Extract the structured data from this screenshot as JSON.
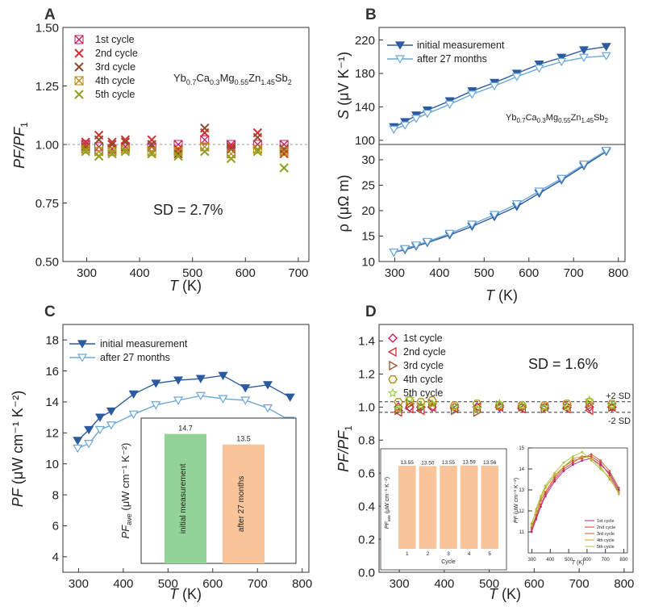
{
  "chart_data": [
    {
      "panel": "A",
      "type": "scatter",
      "xlabel_italic": "T",
      "xlabel_unit": "(K)",
      "ylabel": "PF/PF1",
      "xlim": [
        255,
        720
      ],
      "ylim": [
        0.5,
        1.5
      ],
      "xticks": [
        "300",
        "400",
        "500",
        "600",
        "700"
      ],
      "yticks": [
        "0.50",
        "0.75",
        "1.00",
        "1.25",
        "1.50"
      ],
      "xtick_values": [
        300,
        400,
        500,
        600,
        700
      ],
      "ytick_values": [
        0.5,
        0.75,
        1.0,
        1.25,
        1.5
      ],
      "material_label": {
        "base": "Yb",
        "sub1": "0.7",
        "m2": "Ca",
        "sub2": "0.3",
        "m3": "Mg",
        "sub3": "0.55",
        "m4": "Zn",
        "sub4": "1.45",
        "m5": "Sb",
        "sub5": "2"
      },
      "annotation": "SD = 2.7%",
      "reference_line": 1.0,
      "x": [
        298,
        323,
        348,
        373,
        423,
        473,
        523,
        573,
        623,
        673
      ],
      "series": [
        {
          "name": "1st cycle",
          "color": "#c2185b",
          "values": [
            1.0,
            0.99,
            0.98,
            0.99,
            0.99,
            1.0,
            1.02,
            1.0,
            1.0,
            1.0
          ]
        },
        {
          "name": "2nd cycle",
          "color": "#d32f2f",
          "values": [
            1.01,
            1.04,
            1.01,
            1.02,
            1.02,
            0.98,
            1.05,
            0.99,
            1.05,
            0.96
          ]
        },
        {
          "name": "3rd cycle",
          "color": "#8d4a2f",
          "values": [
            0.99,
            1.02,
            1.0,
            1.01,
            1.0,
            0.96,
            1.07,
            0.98,
            1.03,
            0.98
          ]
        },
        {
          "name": "4th cycle",
          "color": "#b8860b",
          "values": [
            0.98,
            0.97,
            0.97,
            0.98,
            0.97,
            0.97,
            0.99,
            0.96,
            0.98,
            0.97
          ]
        },
        {
          "name": "5th cycle",
          "color": "#8f9e1c",
          "values": [
            0.97,
            0.95,
            0.96,
            0.97,
            0.96,
            0.95,
            0.97,
            0.94,
            0.97,
            0.9
          ]
        }
      ]
    },
    {
      "panel": "B",
      "type": "line",
      "top": {
        "ylabel_italic": "S",
        "ylabel_unit": "(μV K⁻¹)",
        "ylim": [
          95,
          235
        ],
        "yticks": [
          "100",
          "140",
          "180",
          "220"
        ],
        "ytick_values": [
          100,
          140,
          180,
          220
        ],
        "x": [
          298,
          323,
          348,
          373,
          423,
          473,
          523,
          573,
          623,
          673,
          723,
          773
        ],
        "series": [
          {
            "name": "initial measurement",
            "color": "#2c5aa0",
            "filled": true,
            "values": [
              116,
              122,
              130,
              136,
              147,
              159,
              169,
              180,
              191,
              199,
              208,
              212
            ]
          },
          {
            "name": "after 27 months",
            "color": "#6aa8d8",
            "filled": false,
            "values": [
              113,
              118,
              126,
              132,
              143,
              155,
              165,
              176,
              186,
              194,
              199,
              201
            ]
          }
        ],
        "material_label": {
          "base": "Yb",
          "sub1": "0.7",
          "m2": "Ca",
          "sub2": "0.3",
          "m3": "Mg",
          "sub3": "0.55",
          "m4": "Zn",
          "sub4": "1.45",
          "m5": "Sb",
          "sub5": "2"
        }
      },
      "bottom": {
        "ylabel": "ρ (μΩ m)",
        "ylim": [
          10,
          33
        ],
        "yticks": [
          "10",
          "15",
          "20",
          "25",
          "30"
        ],
        "ytick_values": [
          10,
          15,
          20,
          25,
          30
        ],
        "x": [
          298,
          323,
          348,
          373,
          423,
          473,
          523,
          573,
          623,
          673,
          723,
          773
        ],
        "series": [
          {
            "name": "initial measurement",
            "color": "#2c5aa0",
            "filled": true,
            "values": [
              11.8,
              12.3,
              13.0,
              13.7,
              15.2,
              16.9,
              18.8,
              20.8,
              23.4,
              26.0,
              28.8,
              31.6
            ]
          },
          {
            "name": "after 27 months",
            "color": "#6aa8d8",
            "filled": false,
            "values": [
              11.8,
              12.5,
              13.2,
              13.9,
              15.5,
              17.3,
              19.2,
              21.3,
              23.8,
              26.3,
              29.1,
              31.8
            ]
          }
        ]
      },
      "xlim": [
        265,
        815
      ],
      "xticks": [
        "300",
        "400",
        "500",
        "600",
        "700",
        "800"
      ],
      "xtick_values": [
        300,
        400,
        500,
        600,
        700,
        800
      ],
      "xlabel_italic": "T",
      "xlabel_unit": "(K)"
    },
    {
      "panel": "C",
      "type": "line",
      "xlabel_italic": "T",
      "xlabel_unit": "(K)",
      "ylabel_italic": "PF",
      "ylabel_unit": "(μW cm⁻¹ K⁻²)",
      "xlim": [
        265,
        815
      ],
      "ylim": [
        3,
        19
      ],
      "xticks": [
        "300",
        "400",
        "500",
        "600",
        "700",
        "800"
      ],
      "xtick_values": [
        300,
        400,
        500,
        600,
        700,
        800
      ],
      "yticks": [
        "4",
        "6",
        "8",
        "10",
        "12",
        "14",
        "16",
        "18"
      ],
      "ytick_values": [
        4,
        6,
        8,
        10,
        12,
        14,
        16,
        18
      ],
      "x": [
        298,
        323,
        348,
        373,
        423,
        473,
        523,
        573,
        623,
        673,
        723,
        773
      ],
      "series": [
        {
          "name": "initial measurement",
          "color": "#2c5aa0",
          "filled": true,
          "values": [
            11.5,
            12.2,
            13.0,
            13.4,
            14.5,
            15.2,
            15.4,
            15.5,
            15.7,
            14.9,
            15.1,
            14.3
          ]
        },
        {
          "name": "after 27 months",
          "color": "#6aa8d8",
          "filled": false,
          "values": [
            11.0,
            11.3,
            12.2,
            12.5,
            13.2,
            13.8,
            14.1,
            14.4,
            14.2,
            14.1,
            13.6,
            12.8
          ]
        }
      ],
      "inset": {
        "type": "bar",
        "ylabel_italic": "PF",
        "ylabel_sub": "ave",
        "ylabel_unit": "(μW cm⁻¹ K⁻²)",
        "categories": [
          "initial measurement",
          "after 27 months"
        ],
        "values": [
          14.7,
          13.5
        ],
        "labels": [
          "14.7",
          "13.5"
        ],
        "colors": [
          "#93d39a",
          "#f9c49a"
        ],
        "ymin": 0,
        "ymax": 16.5
      }
    },
    {
      "panel": "D",
      "type": "scatter",
      "xlabel_italic": "T",
      "xlabel_unit": "(K)",
      "ylabel": "PF/PF1",
      "xlim": [
        255,
        820
      ],
      "ylim": [
        0,
        1.5
      ],
      "xticks": [
        "300",
        "400",
        "500",
        "600",
        "700",
        "800"
      ],
      "xtick_values": [
        300,
        400,
        500,
        600,
        700,
        800
      ],
      "yticks": [
        "0.0",
        "0.2",
        "0.4",
        "0.6",
        "0.8",
        "1.0",
        "1.2",
        "1.4"
      ],
      "ytick_values": [
        0,
        0.2,
        0.4,
        0.6,
        0.8,
        1.0,
        1.2,
        1.4
      ],
      "annotation": "SD = 1.6%",
      "sd_lines": [
        {
          "value": 1.032,
          "label": "+2 SD"
        },
        {
          "value": 0.968,
          "label": "-2 SD"
        }
      ],
      "x": [
        298,
        323,
        348,
        373,
        423,
        473,
        523,
        573,
        623,
        673,
        723,
        773
      ],
      "series": [
        {
          "name": "1st cycle",
          "color": "#c2185b",
          "marker": "diamond",
          "values": [
            1.0,
            1.0,
            1.0,
            1.0,
            1.0,
            1.0,
            1.0,
            1.0,
            1.0,
            1.0,
            1.0,
            1.0
          ]
        },
        {
          "name": "2nd cycle",
          "color": "#d32f2f",
          "marker": "triangle-left",
          "values": [
            0.97,
            0.99,
            0.98,
            1.0,
            0.99,
            1.0,
            1.0,
            0.99,
            1.0,
            0.99,
            0.98,
            1.0
          ]
        },
        {
          "name": "3rd cycle",
          "color": "#a0522d",
          "marker": "triangle-right",
          "values": [
            0.98,
            1.02,
            1.0,
            1.02,
            0.98,
            0.97,
            1.01,
            1.0,
            0.99,
            1.01,
            1.02,
            1.0
          ]
        },
        {
          "name": "4th cycle",
          "color": "#b8860b",
          "marker": "hexagon",
          "values": [
            1.03,
            1.04,
            1.03,
            1.04,
            1.01,
            1.02,
            1.01,
            1.01,
            1.01,
            1.02,
            1.03,
            1.02
          ]
        },
        {
          "name": "5th cycle",
          "color": "#9acd32",
          "marker": "star",
          "values": [
            0.99,
            1.05,
            1.01,
            1.02,
            1.0,
            0.99,
            1.02,
            1.01,
            1.0,
            1.0,
            1.04,
            1.01
          ]
        }
      ],
      "inset_bar": {
        "type": "bar",
        "ylabel_italic": "PF",
        "ylabel_sub": "ave",
        "ylabel_unit": "(μW cm⁻¹ K⁻²)",
        "xlabel": "Cycle",
        "categories": [
          "1",
          "2",
          "3",
          "4",
          "5"
        ],
        "values": [
          13.55,
          13.5,
          13.55,
          13.59,
          13.56
        ],
        "labels": [
          "13.55",
          "13.50",
          "13.55",
          "13.59",
          "13.56"
        ],
        "color": "#f9c49a",
        "ymin": 0,
        "ymax": 15
      },
      "inset_line": {
        "type": "line",
        "ylabel_italic": "PF",
        "ylabel_unit": "(μW cm⁻¹ K⁻²)",
        "xlabel_italic": "T",
        "xlabel_unit": "(K)",
        "xlim": [
          280,
          820
        ],
        "ylim": [
          10,
          15
        ],
        "xticks": [
          "300",
          "400",
          "500",
          "600",
          "700",
          "800"
        ],
        "xtick_values": [
          300,
          400,
          500,
          600,
          700,
          800
        ],
        "yticks": [
          "11",
          "12",
          "13",
          "14",
          "15"
        ],
        "ytick_values": [
          11,
          12,
          13,
          14,
          15
        ],
        "x": [
          298,
          323,
          348,
          373,
          423,
          473,
          523,
          573,
          623,
          673,
          723,
          773
        ],
        "series": [
          {
            "name": "1st cycle",
            "color": "#9c2aa0",
            "values": [
              11.0,
              11.6,
              12.2,
              12.7,
              13.4,
              13.9,
              14.2,
              14.4,
              14.5,
              14.2,
              13.8,
              13.0
            ]
          },
          {
            "name": "2nd cycle",
            "color": "#e53935",
            "values": [
              11.1,
              11.7,
              12.3,
              12.8,
              13.5,
              14.0,
              14.3,
              14.6,
              14.6,
              14.3,
              13.7,
              12.9
            ]
          },
          {
            "name": "3rd cycle",
            "color": "#c0632a",
            "values": [
              11.2,
              11.8,
              12.5,
              12.9,
              13.6,
              14.1,
              14.4,
              14.5,
              14.7,
              14.4,
              13.9,
              13.1
            ]
          },
          {
            "name": "4th cycle",
            "color": "#c8a020",
            "values": [
              11.4,
              12.0,
              12.6,
              13.1,
              13.7,
              14.1,
              14.5,
              14.6,
              14.5,
              14.1,
              13.5,
              12.9
            ]
          },
          {
            "name": "5th cycle",
            "color": "#a8c83a",
            "values": [
              11.3,
              12.1,
              12.7,
              13.2,
              13.8,
              14.3,
              14.6,
              14.8,
              14.4,
              14.0,
              13.6,
              12.8
            ]
          }
        ]
      }
    }
  ]
}
